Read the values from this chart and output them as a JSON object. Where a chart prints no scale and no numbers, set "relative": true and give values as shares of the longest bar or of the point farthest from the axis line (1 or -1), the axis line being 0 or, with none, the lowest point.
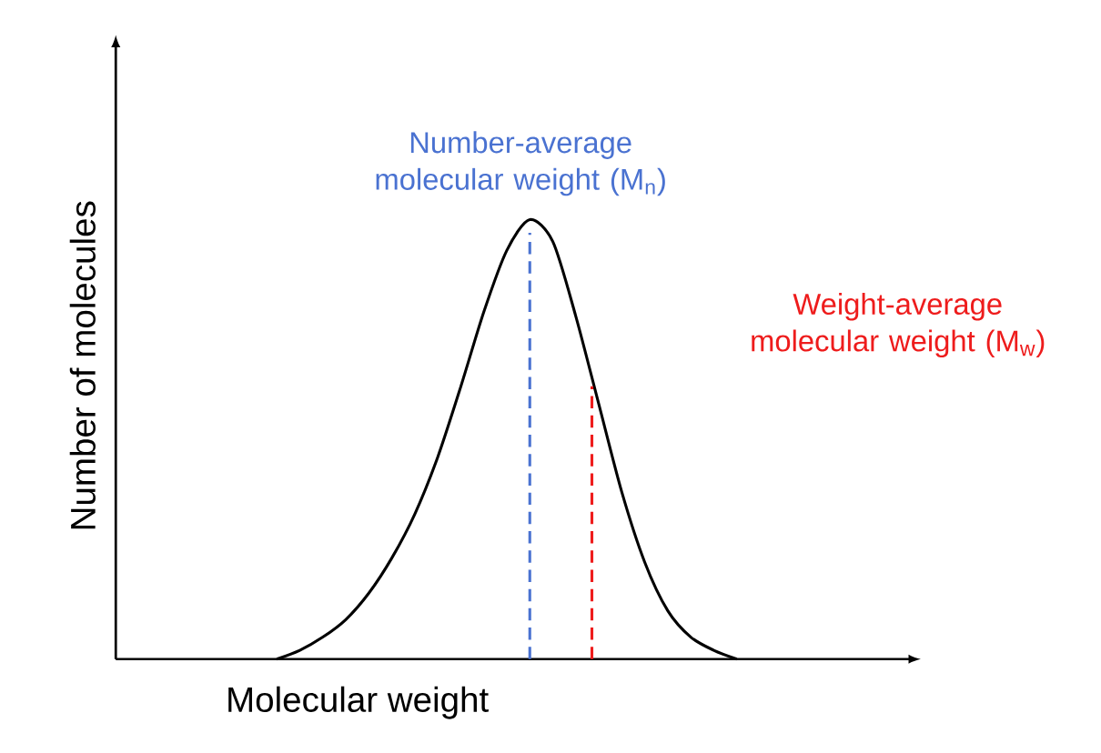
{
  "chart_data": {
    "type": "line",
    "relative": true,
    "xlabel": "Molecular weight",
    "ylabel": "Number of molecules",
    "color": "#000000",
    "categories": [
      null,
      null,
      null,
      null,
      null,
      null,
      null,
      null,
      null,
      null,
      null,
      null,
      null,
      null,
      null,
      null,
      null,
      null,
      null,
      null,
      null
    ],
    "values": [
      0,
      0.02,
      0.05,
      0.09,
      0.15,
      0.23,
      0.33,
      0.46,
      0.62,
      0.79,
      0.93,
      1.0,
      0.95,
      0.78,
      0.58,
      0.38,
      0.22,
      0.11,
      0.05,
      0.02,
      0
    ],
    "annotations": [
      "Number-average molecular weight (M$_{n}$)",
      "Weight-average molecular weight (M$_{w}$)"
    ]
  }
}
